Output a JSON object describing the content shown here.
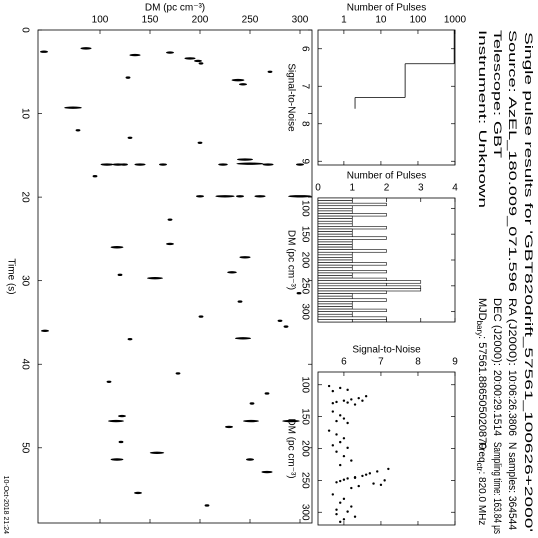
{
  "header": {
    "title": "Single pulse results for 'GBT820drift_57561_100626+2000'",
    "source": "Source: AzEL_180.009_071.596",
    "telescope": "Telescope: GBT",
    "instrument": "Instrument: Unknown",
    "ra_label": "RA (J2000):",
    "ra": "10:06:26.3806",
    "dec_label": "DEC (J2000):",
    "dec": "20:00:29.1514",
    "mjd_label": "MJD",
    "mjd_sub": "bary",
    "mjd_rest": ": 57561.886505020870",
    "nsamples": "N samples: 364544",
    "sampling": "Sampling time: 163.84 μs",
    "freq_label": "Freq",
    "freq_sub": "ctr",
    "freq_rest": ": 820.0 MHz",
    "timestamp": "10-Oct-2018 21:24"
  },
  "chart_data": [
    {
      "type": "scatter",
      "xlabel": "Time (s)",
      "ylabel": "DM (pc cm⁻³)",
      "x": [
        2.6,
        9.3,
        2.2,
        5.7,
        3.0,
        2.7,
        3.4,
        3.7,
        4.0,
        6.0,
        5.0,
        6.5,
        16.1,
        16.1,
        16.1,
        16.1,
        16.1,
        16.1,
        16.0,
        16.1,
        15.5,
        16.1,
        19.9,
        19.9,
        19.9,
        19.9,
        19.9,
        13.5,
        12.9,
        12.0,
        17.5,
        22.7,
        26.0,
        27.2,
        25.6,
        29.7,
        29.0,
        29.3,
        31.5,
        32.5,
        34.3,
        34.8,
        35.5,
        36.0,
        36.9,
        37.0,
        41.1,
        42.1,
        43.5,
        44.7,
        46.2,
        46.8,
        46.8,
        46.8,
        47.5,
        49.3,
        50.6,
        51.4,
        51.4,
        52.9,
        55.4,
        56.9
      ],
      "y": [
        44,
        73,
        86,
        128,
        135,
        170,
        190,
        198,
        201,
        238,
        270,
        243,
        107,
        118,
        124,
        140,
        163,
        223,
        250,
        268,
        245,
        300,
        225,
        300,
        260,
        240,
        200,
        200,
        130,
        78,
        95,
        170,
        117,
        245,
        170,
        155,
        232,
        120,
        299,
        240,
        201,
        280,
        286,
        45,
        243,
        130,
        178,
        109,
        267,
        252,
        122,
        116,
        251,
        291,
        229,
        121,
        157,
        117,
        250,
        267,
        138,
        207
      ],
      "sizes": [
        6.0,
        6.6,
        6.2,
        5.8,
        6.2,
        6.0,
        6.2,
        6.0,
        5.8,
        6.3,
        5.8,
        6.0,
        6.3,
        6.2,
        6.0,
        6.2,
        6.0,
        6.1,
        7.2,
        6.2,
        6.5,
        6.0,
        6.7,
        7.0,
        6.2,
        6.0,
        6.0,
        5.8,
        5.8,
        5.8,
        5.8,
        5.8,
        6.3,
        6.2,
        6.0,
        6.5,
        6.1,
        5.8,
        5.8,
        5.8,
        5.8,
        5.8,
        5.8,
        6.0,
        6.5,
        5.8,
        5.8,
        5.8,
        5.8,
        5.8,
        6.0,
        6.5,
        6.5,
        6.6,
        6.0,
        5.8,
        6.4,
        6.3,
        6.0,
        6.2,
        6.0,
        5.8
      ],
      "xlim": [
        0,
        59
      ],
      "ylim": [
        38,
        312
      ],
      "xticks": [
        0,
        10,
        20,
        30,
        40,
        50
      ],
      "yticks": [
        100,
        150,
        200,
        250,
        300
      ],
      "color": "#000000"
    },
    {
      "type": "histogram",
      "histtype": "step",
      "xlabel": "Signal-to-Noise",
      "ylabel": "Number of Pulses",
      "bins": [
        5.5,
        6.4,
        7.3,
        7.6
      ],
      "counts": [
        950,
        45,
        2
      ],
      "xlim": [
        5.5,
        9.1
      ],
      "ylim": [
        0.2,
        1000
      ],
      "xticks": [
        6,
        7,
        8,
        9
      ],
      "yticks": [
        1,
        10,
        100,
        1000
      ],
      "log_y": true,
      "color": "#000000"
    },
    {
      "type": "histogram",
      "histtype": "bar",
      "xlabel": "DM (pc cm⁻³)",
      "ylabel": "Number of Pulses",
      "bins": [
        80,
        85,
        90,
        95,
        100,
        105,
        110,
        115,
        120,
        125,
        130,
        135,
        140,
        145,
        150,
        155,
        160,
        165,
        170,
        175,
        180,
        185,
        190,
        195,
        200,
        205,
        210,
        215,
        220,
        225,
        230,
        235,
        240,
        245,
        250,
        255,
        260,
        265,
        270,
        275,
        280,
        285,
        290,
        295,
        300,
        305,
        310,
        315,
        320
      ],
      "counts": [
        1,
        1,
        2,
        1,
        1,
        1,
        2,
        1,
        1,
        1,
        1,
        2,
        1,
        1,
        1,
        2,
        1,
        1,
        1,
        1,
        2,
        1,
        1,
        1,
        1,
        2,
        1,
        1,
        2,
        1,
        1,
        2,
        3,
        2,
        3,
        3,
        2,
        1,
        1,
        2,
        1,
        1,
        1,
        2,
        1,
        1,
        2,
        1
      ],
      "xlim": [
        80,
        320
      ],
      "ylim": [
        0,
        4
      ],
      "xticks": [
        100,
        150,
        200,
        250,
        300
      ],
      "yticks": [
        0,
        1,
        2,
        3,
        4
      ],
      "log_y": false,
      "color": "#000000"
    },
    {
      "type": "scatter",
      "xlabel": "DM (pc cm⁻³)",
      "ylabel": "Signal-to-Noise",
      "x": [
        102,
        105,
        108,
        110,
        118,
        121,
        123,
        125,
        127,
        129,
        131,
        142,
        148,
        153,
        157,
        160,
        172,
        178,
        184,
        190,
        195,
        199,
        205,
        212,
        219,
        226,
        232,
        236,
        239,
        241,
        243,
        245,
        247,
        249,
        251,
        253,
        255,
        257,
        259,
        262,
        272,
        279,
        285,
        291,
        296,
        299,
        303,
        307,
        311,
        315,
        125,
        246,
        250,
        128
      ],
      "y": [
        5.6,
        5.9,
        6.1,
        5.7,
        6.6,
        6.4,
        6.2,
        6.0,
        5.8,
        5.7,
        6.3,
        5.7,
        5.9,
        6.0,
        5.8,
        6.1,
        5.6,
        5.8,
        6.0,
        5.9,
        5.7,
        6.1,
        5.8,
        6.0,
        6.2,
        5.9,
        7.2,
        6.9,
        6.7,
        6.6,
        6.5,
        6.3,
        6.1,
        6.0,
        5.9,
        5.8,
        6.8,
        7.0,
        6.4,
        6.2,
        5.7,
        6.0,
        5.9,
        6.2,
        5.8,
        6.1,
        5.8,
        6.3,
        6.0,
        5.9,
        6.5,
        6.3,
        7.1,
        6.1
      ],
      "xlim": [
        80,
        320
      ],
      "ylim": [
        5.3,
        9
      ],
      "xticks": [
        100,
        150,
        200,
        250,
        300
      ],
      "yticks": [
        6,
        7,
        8,
        9
      ],
      "color": "#000000"
    }
  ]
}
